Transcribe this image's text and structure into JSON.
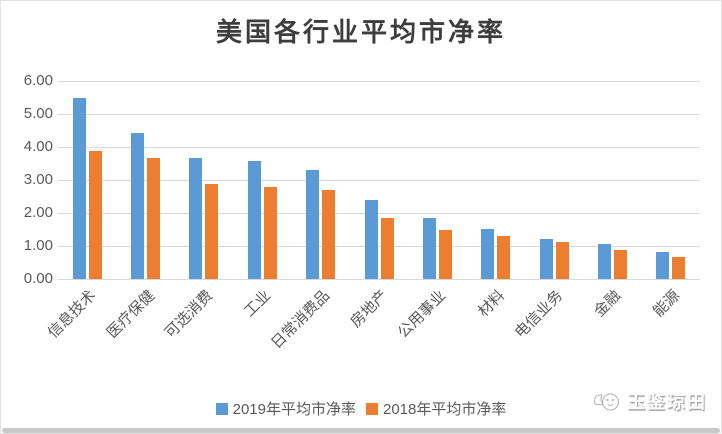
{
  "chart_data": {
    "type": "bar",
    "title": "美国各行业平均市净率",
    "categories": [
      "信息技术",
      "医疗保健",
      "可选消费",
      "工业",
      "日常消费品",
      "房地产",
      "公用事业",
      "材料",
      "电信业务",
      "金融",
      "能源"
    ],
    "series": [
      {
        "name": "2019年平均市净率",
        "color": "#5B9BD5",
        "values": [
          5.5,
          4.43,
          3.66,
          3.57,
          3.29,
          2.38,
          1.86,
          1.52,
          1.21,
          1.07,
          0.83
        ]
      },
      {
        "name": "2018年平均市净率",
        "color": "#ED7D31",
        "values": [
          3.87,
          3.66,
          2.87,
          2.79,
          2.7,
          1.86,
          1.49,
          1.29,
          1.13,
          0.89,
          0.68
        ]
      }
    ],
    "xlabel": "",
    "ylabel": "",
    "ylim": [
      0,
      6
    ],
    "yticks": [
      "0.00",
      "1.00",
      "2.00",
      "3.00",
      "4.00",
      "5.00",
      "6.00"
    ],
    "grid": true,
    "gridline_color": "#D9D9D9",
    "axis_text_color": "#595959",
    "legend_position": "bottom"
  },
  "watermark": {
    "text": "玉鉴琼田",
    "icon": "mascot-face-icon"
  },
  "frame": {
    "background": "#FFFFFF",
    "border_color": "#E3E3E3",
    "bottom_bar_color": "#C9C9C9"
  }
}
